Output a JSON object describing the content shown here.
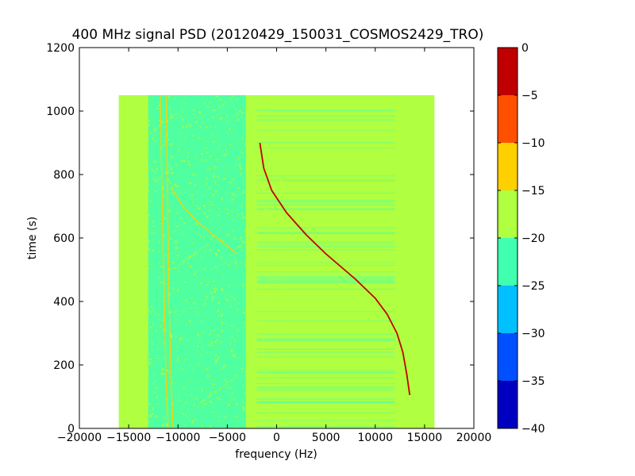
{
  "chart_data": {
    "type": "heatmap",
    "title": "400 MHz signal PSD (20120429_150031_COSMOS2429_TRO)",
    "xlabel": "frequency (Hz)",
    "ylabel": "time (s)",
    "xlim": [
      -20000,
      20000
    ],
    "ylim": [
      0,
      1200
    ],
    "xticks": [
      -20000,
      -15000,
      -10000,
      -5000,
      0,
      5000,
      10000,
      15000,
      20000
    ],
    "xtick_labels": [
      "−20000",
      "−15000",
      "−10000",
      "−5000",
      "0",
      "5000",
      "10000",
      "15000",
      "20000"
    ],
    "yticks": [
      0,
      200,
      400,
      600,
      800,
      1000,
      1200
    ],
    "ytick_labels": [
      "0",
      "200",
      "400",
      "600",
      "800",
      "1000",
      "1200"
    ],
    "data_extent": {
      "x": [
        -16000,
        16000
      ],
      "y": [
        0,
        1050
      ]
    },
    "colorbar": {
      "range": [
        -40,
        0
      ],
      "ticks": [
        0,
        -5,
        -10,
        -15,
        -20,
        -25,
        -30,
        -35,
        -40
      ],
      "tick_labels": [
        "0",
        "−5",
        "−10",
        "−15",
        "−20",
        "−25",
        "−30",
        "−35",
        "−40"
      ],
      "bands": [
        {
          "from": -40,
          "to": -35,
          "color": "#0000c0"
        },
        {
          "from": -35,
          "to": -30,
          "color": "#0050ff"
        },
        {
          "from": -30,
          "to": -25,
          "color": "#00c0ff"
        },
        {
          "from": -25,
          "to": -20,
          "color": "#40ffb0"
        },
        {
          "from": -20,
          "to": -15,
          "color": "#b0ff40"
        },
        {
          "from": -15,
          "to": -10,
          "color": "#ffd000"
        },
        {
          "from": -10,
          "to": -5,
          "color": "#ff5000"
        },
        {
          "from": -5,
          "to": 0,
          "color": "#c00000"
        }
      ]
    },
    "background_level_db": -17.5,
    "noise_band": {
      "x": [
        -13500,
        -2000
      ],
      "level_db": -22.5
    },
    "faint_band": {
      "x": [
        -2000,
        12000
      ],
      "level_db": -21
    },
    "series": [
      {
        "level_db": -2.5,
        "points": [
          {
            "x": 13500,
            "y": 105
          },
          {
            "x": 13200,
            "y": 170
          },
          {
            "x": 12800,
            "y": 240
          },
          {
            "x": 12200,
            "y": 300
          },
          {
            "x": 11200,
            "y": 360
          },
          {
            "x": 10000,
            "y": 410
          },
          {
            "x": 8000,
            "y": 470
          },
          {
            "x": 5000,
            "y": 550
          },
          {
            "x": 3000,
            "y": 610
          },
          {
            "x": 1000,
            "y": 680
          },
          {
            "x": -500,
            "y": 750
          },
          {
            "x": -1300,
            "y": 820
          },
          {
            "x": -1700,
            "y": 900
          }
        ]
      },
      {
        "level_db": -12.5,
        "points": [
          {
            "x": -10700,
            "y": 760
          },
          {
            "x": -9500,
            "y": 700
          },
          {
            "x": -8000,
            "y": 650
          },
          {
            "x": -6000,
            "y": 600
          },
          {
            "x": -4000,
            "y": 550
          }
        ]
      },
      {
        "level_db": -12.5,
        "points": [
          {
            "x": -11200,
            "y": 1050
          },
          {
            "x": -11050,
            "y": 700
          },
          {
            "x": -10900,
            "y": 400
          },
          {
            "x": -10700,
            "y": 150
          },
          {
            "x": -10500,
            "y": 0
          }
        ]
      },
      {
        "level_db": -12.5,
        "points": [
          {
            "x": -11800,
            "y": 1050
          },
          {
            "x": -11600,
            "y": 700
          },
          {
            "x": -11400,
            "y": 400
          },
          {
            "x": -11200,
            "y": 150
          },
          {
            "x": -11000,
            "y": 0
          }
        ]
      }
    ]
  }
}
